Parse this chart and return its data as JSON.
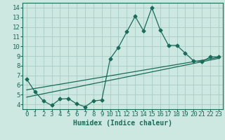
{
  "xlabel": "Humidex (Indice chaleur)",
  "background_color": "#cce8e0",
  "line_color": "#1a6b5a",
  "grid_color": "#aaccc4",
  "xlim": [
    -0.5,
    23.5
  ],
  "ylim": [
    3.5,
    14.5
  ],
  "xticks": [
    0,
    1,
    2,
    3,
    4,
    5,
    6,
    7,
    8,
    9,
    10,
    11,
    12,
    13,
    14,
    15,
    16,
    17,
    18,
    19,
    20,
    21,
    22,
    23
  ],
  "yticks": [
    4,
    5,
    6,
    7,
    8,
    9,
    10,
    11,
    12,
    13,
    14
  ],
  "line1_x": [
    0,
    1,
    2,
    3,
    4,
    5,
    6,
    7,
    8,
    9,
    10,
    11,
    12,
    13,
    14,
    15,
    16,
    17,
    18,
    19,
    20,
    21,
    22,
    23
  ],
  "line1_y": [
    6.6,
    5.3,
    4.35,
    3.9,
    4.55,
    4.6,
    4.05,
    3.75,
    4.35,
    4.45,
    8.7,
    9.9,
    11.5,
    13.1,
    11.6,
    14.0,
    11.7,
    10.1,
    10.1,
    9.3,
    8.5,
    8.4,
    8.9,
    8.9
  ],
  "line2_x": [
    0,
    23
  ],
  "line2_y": [
    5.5,
    8.85
  ],
  "line3_x": [
    0,
    23
  ],
  "line3_y": [
    4.75,
    8.75
  ],
  "marker_size": 2.5,
  "font_size": 6.5
}
